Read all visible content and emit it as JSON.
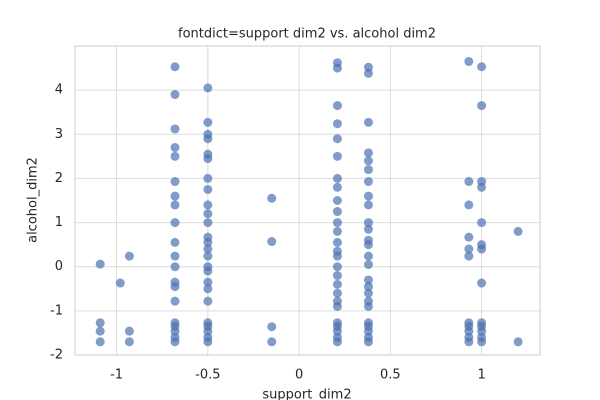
{
  "chart_data": {
    "type": "scatter",
    "title": "fontdict=support dim2 vs. alcohol dim2",
    "x_label": "support_dim2",
    "y_label": "alcohol_dim2",
    "color": "#4c72b0",
    "grid": true,
    "xlim": [
      -1.228,
      1.32
    ],
    "ylim": [
      -2,
      5.0
    ],
    "xticks": [
      -1.0,
      -0.5,
      0.0,
      0.5,
      1.0
    ],
    "yticks": [
      -2,
      -1,
      0,
      1,
      2,
      3,
      4
    ],
    "x": [
      -1.09,
      -1.09,
      -1.09,
      -1.09,
      -0.98,
      -0.93,
      -0.93,
      -0.93,
      -0.68,
      -0.68,
      -0.68,
      -0.68,
      -0.68,
      -0.68,
      -0.68,
      -0.68,
      -0.68,
      -0.68,
      -0.68,
      -0.68,
      -0.68,
      -0.68,
      -0.68,
      -0.68,
      -0.68,
      -0.68,
      -0.68,
      -0.68,
      -0.5,
      -0.5,
      -0.5,
      -0.5,
      -0.5,
      -0.5,
      -0.5,
      -0.5,
      -0.5,
      -0.5,
      -0.5,
      -0.5,
      -0.5,
      -0.5,
      -0.5,
      -0.5,
      -0.5,
      -0.5,
      -0.5,
      -0.5,
      -0.5,
      -0.5,
      -0.5,
      -0.5,
      -0.5,
      -0.15,
      -0.15,
      -0.15,
      -0.15,
      0.21,
      0.21,
      0.21,
      0.21,
      0.21,
      0.21,
      0.21,
      0.21,
      0.21,
      0.21,
      0.21,
      0.21,
      0.21,
      0.21,
      0.21,
      0.21,
      0.21,
      0.21,
      0.21,
      0.21,
      0.21,
      0.21,
      0.21,
      0.21,
      0.21,
      0.21,
      0.38,
      0.38,
      0.38,
      0.38,
      0.38,
      0.38,
      0.38,
      0.38,
      0.38,
      0.38,
      0.38,
      0.38,
      0.38,
      0.38,
      0.38,
      0.38,
      0.38,
      0.38,
      0.38,
      0.38,
      0.38,
      0.38,
      0.38,
      0.38,
      0.38,
      0.93,
      0.93,
      0.93,
      0.93,
      0.93,
      0.93,
      0.93,
      0.93,
      0.93,
      0.93,
      0.93,
      1.0,
      1.0,
      1.0,
      1.0,
      1.0,
      1.0,
      1.0,
      1.0,
      1.0,
      1.0,
      1.0,
      1.0,
      1.0,
      1.2,
      1.2
    ],
    "y": [
      0.06,
      -1.27,
      -1.46,
      -1.7,
      -0.37,
      0.24,
      -1.46,
      -1.7,
      4.53,
      3.9,
      3.12,
      2.7,
      2.5,
      1.93,
      1.6,
      1.4,
      1.0,
      0.55,
      0.24,
      0.0,
      -0.35,
      -0.45,
      -0.78,
      -1.27,
      -1.35,
      -1.46,
      -1.6,
      -1.7,
      4.05,
      3.27,
      3.0,
      2.9,
      2.55,
      2.45,
      2.0,
      1.75,
      1.4,
      1.2,
      1.0,
      0.67,
      0.55,
      0.4,
      0.24,
      0.0,
      -0.1,
      -0.35,
      -0.5,
      -0.78,
      -1.27,
      -1.35,
      -1.46,
      -1.6,
      -1.7,
      1.55,
      0.57,
      -1.36,
      -1.7,
      4.62,
      4.5,
      3.65,
      3.24,
      2.9,
      2.5,
      2.0,
      1.8,
      1.5,
      1.25,
      1.0,
      0.8,
      0.55,
      0.35,
      0.24,
      0.0,
      -0.2,
      -0.4,
      -0.6,
      -0.78,
      -0.9,
      -1.27,
      -1.35,
      -1.46,
      -1.6,
      -1.7,
      4.52,
      4.38,
      3.27,
      2.58,
      2.4,
      2.2,
      1.93,
      1.6,
      1.4,
      1.0,
      0.85,
      0.6,
      0.5,
      0.24,
      0.05,
      -0.3,
      -0.45,
      -0.6,
      -0.78,
      -0.9,
      -1.27,
      -1.35,
      -1.46,
      -1.6,
      -1.7,
      4.65,
      1.93,
      1.4,
      0.67,
      0.4,
      0.24,
      -1.27,
      -1.35,
      -1.46,
      -1.6,
      -1.7,
      4.53,
      3.65,
      1.93,
      1.8,
      1.0,
      0.5,
      0.4,
      -0.37,
      -1.27,
      -1.35,
      -1.46,
      -1.6,
      -1.7,
      0.8,
      -1.7
    ]
  }
}
